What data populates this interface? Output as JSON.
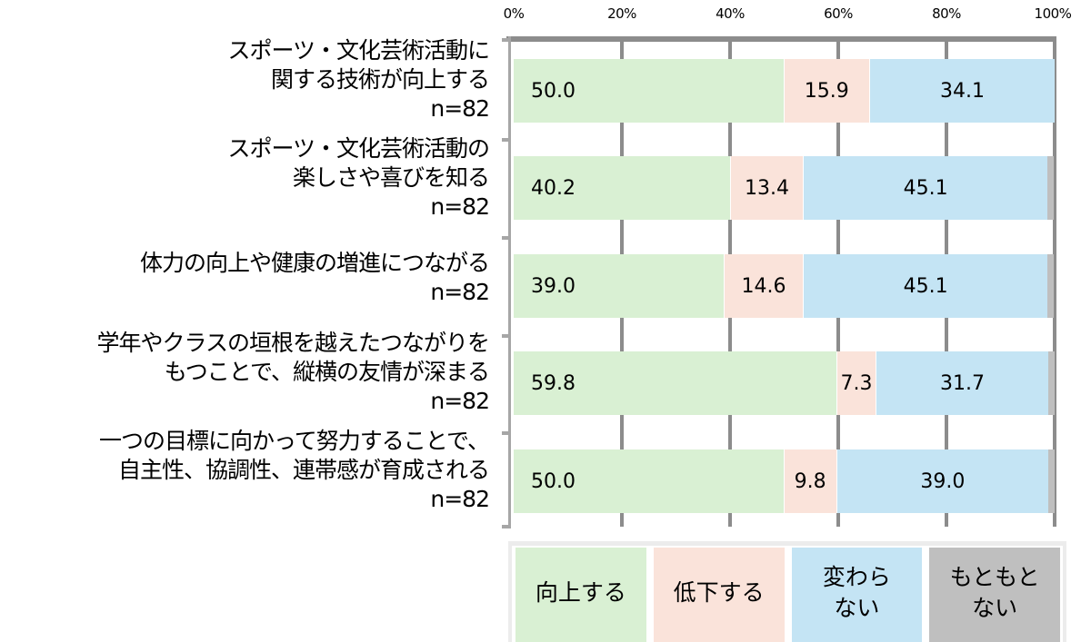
{
  "chart_data": {
    "type": "bar",
    "orientation": "horizontal",
    "stacked": true,
    "percent": true,
    "title": "",
    "xlabel": "",
    "ylabel": "",
    "xlim": [
      0,
      100
    ],
    "x_ticks": [
      "0%",
      "20%",
      "40%",
      "60%",
      "80%",
      "100%"
    ],
    "grid": true,
    "legend_position": "bottom",
    "categories": [
      "スポーツ・文化芸術活動に関する技術が向上する n=82",
      "スポーツ・文化芸術活動の楽しさや喜びを知る n=82",
      "体力の向上や健康の増進につながる n=82",
      "学年やクラスの垣根を越えたつながりをもつことで、縦横の友情が深まる n=82",
      "一つの目標に向かって努力することで、自主性、協調性、連帯感が育成される n=82"
    ],
    "series": [
      {
        "name": "向上する",
        "color": "#d9f0d3",
        "values": [
          50.0,
          40.2,
          39.0,
          59.8,
          50.0
        ]
      },
      {
        "name": "低下する",
        "color": "#fae3da",
        "values": [
          15.9,
          13.4,
          14.6,
          7.3,
          9.8
        ]
      },
      {
        "name": "変わらない",
        "color": "#c4e4f4",
        "values": [
          34.1,
          45.1,
          45.1,
          31.7,
          39.0
        ]
      },
      {
        "name": "もともとない",
        "color": "#bfbfbf",
        "values": [
          0.0,
          1.2,
          1.2,
          1.2,
          1.2
        ]
      }
    ]
  },
  "axis": {
    "ticks": [
      "0%",
      "20%",
      "40%",
      "60%",
      "80%",
      "100%"
    ]
  },
  "rows": [
    {
      "lines": [
        "スポーツ・文化芸術活動に",
        "関する技術が向上する",
        "n=82"
      ],
      "labels": [
        "50.0",
        "15.9",
        "34.1",
        ""
      ]
    },
    {
      "lines": [
        "スポーツ・文化芸術活動の",
        "楽しさや喜びを知る",
        "n=82"
      ],
      "labels": [
        "40.2",
        "13.4",
        "45.1",
        ""
      ]
    },
    {
      "lines": [
        "体力の向上や健康の増進につながる",
        "n=82"
      ],
      "labels": [
        "39.0",
        "14.6",
        "45.1",
        ""
      ]
    },
    {
      "lines": [
        "学年やクラスの垣根を越えたつながりを",
        "もつことで、縦横の友情が深まる",
        "n=82"
      ],
      "labels": [
        "59.8",
        "7.3",
        "31.7",
        ""
      ]
    },
    {
      "lines": [
        "一つの目標に向かって努力することで、",
        "自主性、協調性、連帯感が育成される",
        "n=82"
      ],
      "labels": [
        "50.0",
        "9.8",
        "39.0",
        ""
      ]
    }
  ],
  "legend": {
    "items": [
      "向上する",
      "低下する",
      "変わらない",
      "もともとない"
    ],
    "display": [
      "向上する",
      "低下する",
      "変わら\nない",
      "もともと\nない"
    ]
  }
}
